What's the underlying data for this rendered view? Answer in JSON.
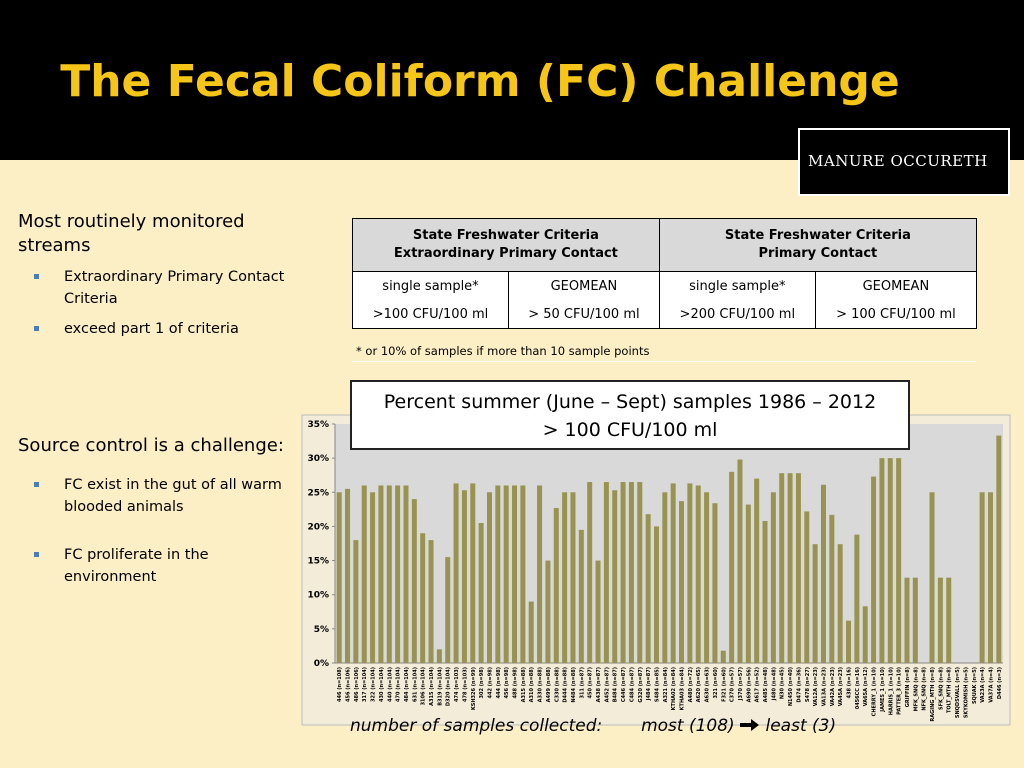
{
  "title": "The Fecal Coliform (FC) Challenge",
  "logo": "MANURE OCCURETH",
  "left": {
    "heading1": "Most routinely monitored streams",
    "bullets1": [
      "Extraordinary Primary Contact Criteria",
      "exceed part 1 of criteria"
    ],
    "heading2": "Source control is a challenge:",
    "bullets2": [
      "FC exist in the gut of all warm blooded animals",
      "FC proliferate in the environment"
    ]
  },
  "table": {
    "groups": [
      [
        "State Freshwater Criteria",
        "Extraordinary Primary Contact"
      ],
      [
        "State Freshwater Criteria",
        "Primary Contact"
      ]
    ],
    "rows": [
      [
        "single sample*",
        "GEOMEAN",
        "single sample*",
        "GEOMEAN"
      ],
      [
        ">100 CFU/100 ml",
        "> 50 CFU/100 ml",
        ">200 CFU/100 ml",
        "> 100 CFU/100 ml"
      ]
    ],
    "footnote": "* or 10% of samples if more than 10 sample points"
  },
  "callout": [
    "Percent summer (June – Sept) samples 1986 – 2012",
    "> 100 CFU/100 ml"
  ],
  "caption": [
    "number of samples collected:",
    "most (108)",
    "least (3)"
  ],
  "chart_data": {
    "type": "bar",
    "color": "#999351",
    "grid": false,
    "ylim": [
      0,
      35
    ],
    "yticks": [
      {
        "value": 0,
        "label": "0%"
      },
      {
        "value": 5,
        "label": "5%"
      },
      {
        "value": 10,
        "label": "10%"
      },
      {
        "value": 15,
        "label": "15%"
      },
      {
        "value": 20,
        "label": "20%"
      },
      {
        "value": 25,
        "label": "25%"
      },
      {
        "value": 30,
        "label": "30%"
      },
      {
        "value": 35,
        "label": "35%"
      }
    ],
    "categories": [
      "446 (n=108)",
      "456 (n=106)",
      "486 (n=106)",
      "317 (n=104)",
      "322 (n=104)",
      "430 (n=104)",
      "440 (n=104)",
      "470 (n=104)",
      "484 (n=104)",
      "631 (n=104)",
      "3106 (n=104)",
      "A315 (n=104)",
      "B319 (n=104)",
      "D320 (n=104)",
      "474 (n=103)",
      "478 (n=103)",
      "KSH326 (n=99)",
      "302 (n=98)",
      "442 (n=98)",
      "444 (n=98)",
      "456 (n=98)",
      "488 (n=98)",
      "A315 (n=88)",
      "A310 (n=88)",
      "A330 (n=88)",
      "A499 (n=88)",
      "C330 (n=88)",
      "D444 (n=88)",
      "N484 (n=88)",
      "311 (n=87)",
      "450 (n=87)",
      "A438 (n=87)",
      "A452 (n=87)",
      "B484 (n=87)",
      "C446 (n=87)",
      "C484 (n=87)",
      "G320 (n=87)",
      "J484 (n=87)",
      "S484 (n=85)",
      "A321 (n=84)",
      "KTHA02 (n=84)",
      "KTHA03 (n=84)",
      "A480 (n=72)",
      "A620 (n=65)",
      "A630 (n=63)",
      "321 (n=60)",
      "F321 (n=60)",
      "C370 (n=57)",
      "J370 (n=57)",
      "A690 (n=56)",
      "A617 (n=52)",
      "A485 (n=48)",
      "J480 (n=48)",
      "N30 (n=45)",
      "N1450 (n=40)",
      "D474 (n=36)",
      "S478 (n=27)",
      "VA12A (n=23)",
      "VA13A (n=23)",
      "VA42A (n=23)",
      "VA45A (n=23)",
      "438 (n=16)",
      "0456CC (n=16)",
      "VA65A (n=12)",
      "CHERRY_1 (n=10)",
      "JAMES_1 (n=10)",
      "HARRIS_1 (n=10)",
      "PATTER_3 (n=10)",
      "GRIFFIN (n=8)",
      "MFK_SNQ (n=8)",
      "NFK_SNQ (n=8)",
      "RAGING_MTH (n=8)",
      "SFK_SNQ (n=8)",
      "TOLT_MTH (n=8)",
      "SNQDSVALL (n=5)",
      "SKYKOMISH (n=5)",
      "SQUAK (n=5)",
      "VA23A (n=4)",
      "VA37A (n=4)",
      "D446 (n=3)"
    ],
    "values": [
      25,
      25.5,
      18,
      26,
      25,
      26,
      26,
      26,
      26,
      24,
      19,
      18,
      2,
      15.5,
      26.3,
      25.3,
      26.3,
      20.5,
      25,
      26,
      26,
      26,
      26,
      9,
      26,
      15,
      22.7,
      25,
      25,
      19.5,
      26.5,
      15,
      26.5,
      25.3,
      26.5,
      26.5,
      26.5,
      21.8,
      20,
      25,
      26.3,
      23.7,
      26.3,
      26,
      25,
      23.4,
      1.8,
      28,
      29.8,
      23.2,
      27,
      20.8,
      25,
      27.8,
      27.8,
      27.8,
      22.2,
      17.4,
      26.1,
      21.7,
      17.4,
      6.2,
      18.8,
      8.3,
      27.3,
      30,
      30,
      30,
      12.5,
      12.5,
      0,
      25,
      12.5,
      12.5,
      0,
      0,
      0,
      25,
      25,
      33.3
    ]
  }
}
